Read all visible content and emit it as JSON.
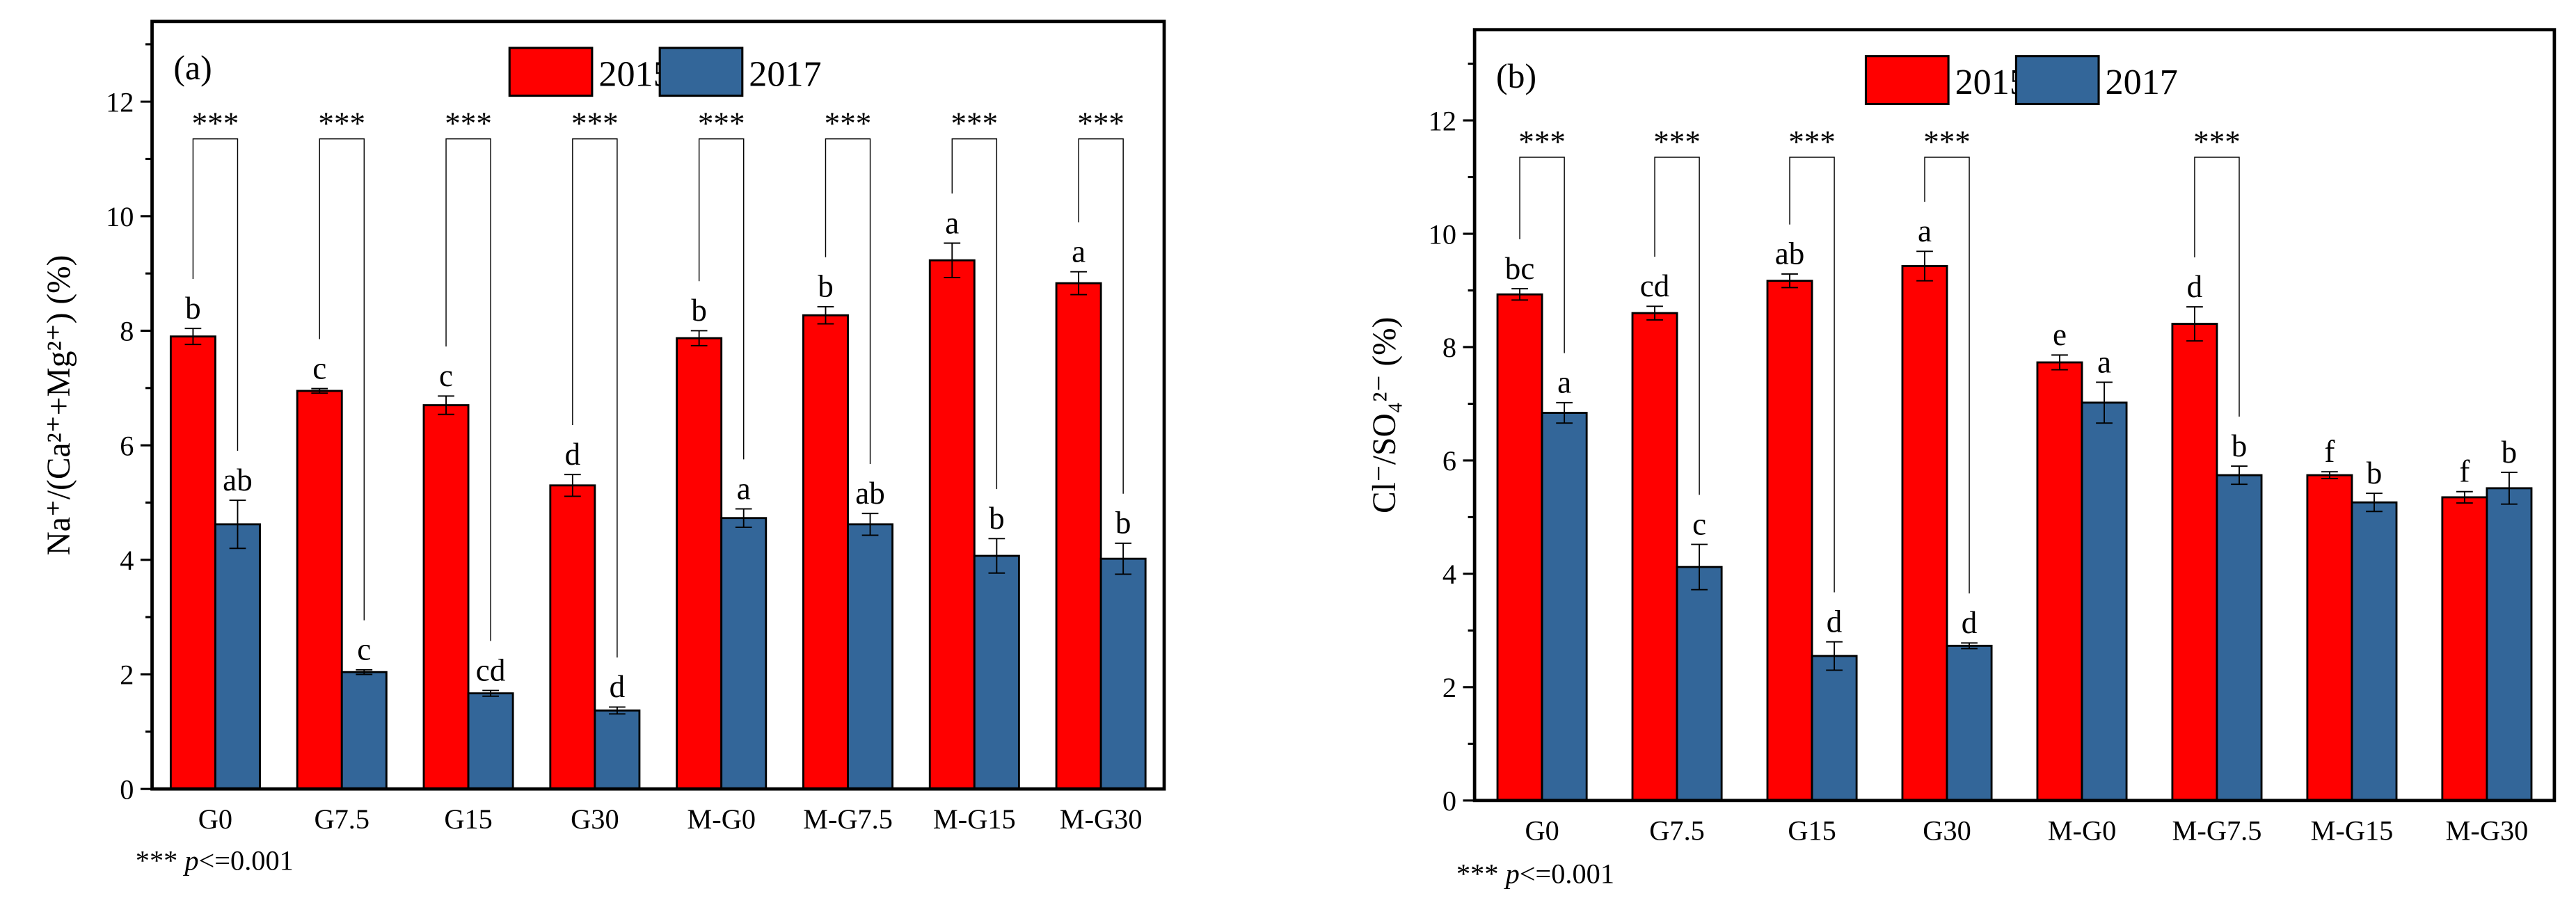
{
  "legend": {
    "series": [
      "2015",
      "2017"
    ]
  },
  "footnote": {
    "stars": "***",
    "p": "p",
    "rest": "<=0.001"
  },
  "colors": {
    "2015": "#ff0000",
    "2017": "#336699"
  },
  "chart_data": [
    {
      "type": "bar",
      "panel_label": "(a)",
      "title": "",
      "xlabel": "",
      "ylabel": "Na⁺/(Ca²⁺+Mg²⁺) (%)",
      "ylim": [
        0,
        13.4
      ],
      "yticks": [
        0,
        2,
        4,
        6,
        8,
        10,
        12
      ],
      "legend_position": "top-center",
      "categories": [
        "G0",
        "G7.5",
        "G15",
        "G30",
        "M-G0",
        "M-G7.5",
        "M-G15",
        "M-G30"
      ],
      "series": [
        {
          "name": "2015",
          "values": [
            7.9,
            6.95,
            6.7,
            5.3,
            7.87,
            8.27,
            9.23,
            8.83
          ],
          "errors": [
            0.14,
            0.04,
            0.16,
            0.19,
            0.13,
            0.15,
            0.3,
            0.2
          ],
          "letters": [
            "b",
            "c",
            "c",
            "d",
            "b",
            "b",
            "a",
            "a"
          ]
        },
        {
          "name": "2017",
          "values": [
            4.62,
            2.04,
            1.67,
            1.37,
            4.73,
            4.62,
            4.07,
            4.02
          ],
          "errors": [
            0.42,
            0.04,
            0.05,
            0.06,
            0.16,
            0.19,
            0.3,
            0.27
          ],
          "letters": [
            "ab",
            "c",
            "cd",
            "d",
            "a",
            "ab",
            "b",
            "b"
          ]
        }
      ],
      "significance": [
        "***",
        "***",
        "***",
        "***",
        "***",
        "***",
        "***",
        "***"
      ]
    },
    {
      "type": "bar",
      "panel_label": "(b)",
      "title": "",
      "xlabel": "",
      "ylabel": "Cl⁻/SO₄²⁻ (%)",
      "ylim": [
        0,
        13.6
      ],
      "yticks": [
        0,
        2,
        4,
        6,
        8,
        10,
        12
      ],
      "legend_position": "top-center",
      "categories": [
        "G0",
        "G7.5",
        "G15",
        "G30",
        "M-G0",
        "M-G7.5",
        "M-G15",
        "M-G30"
      ],
      "series": [
        {
          "name": "2015",
          "values": [
            8.93,
            8.6,
            9.17,
            9.43,
            7.73,
            8.41,
            5.74,
            5.35
          ],
          "errors": [
            0.1,
            0.12,
            0.12,
            0.26,
            0.13,
            0.3,
            0.06,
            0.1
          ],
          "letters": [
            "bc",
            "cd",
            "ab",
            "a",
            "e",
            "d",
            "f",
            "f"
          ]
        },
        {
          "name": "2017",
          "values": [
            6.84,
            4.12,
            2.55,
            2.73,
            7.02,
            5.74,
            5.26,
            5.51
          ],
          "errors": [
            0.18,
            0.4,
            0.25,
            0.05,
            0.36,
            0.16,
            0.16,
            0.28
          ],
          "letters": [
            "a",
            "c",
            "d",
            "d",
            "a",
            "b",
            "b",
            "b"
          ]
        }
      ],
      "significance": [
        "***",
        "***",
        "***",
        "***",
        "",
        "***",
        "",
        ""
      ]
    }
  ]
}
